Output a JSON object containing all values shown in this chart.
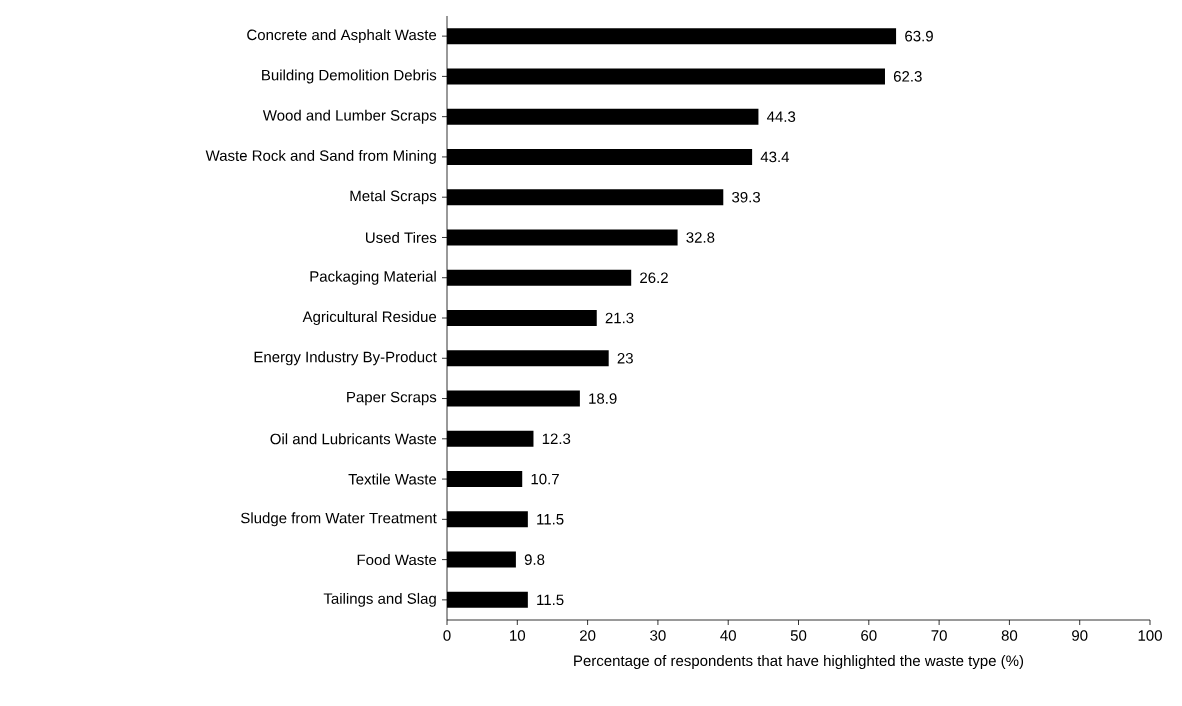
{
  "chart_data": {
    "type": "bar",
    "orientation": "horizontal",
    "xlabel": "Percentage of respondents that have highlighted the waste type (%)",
    "categories": [
      "Concrete and Asphalt Waste",
      "Building Demolition Debris",
      "Wood and Lumber Scraps",
      "Waste Rock and Sand from Mining",
      "Metal Scraps",
      "Used Tires",
      "Packaging Material",
      "Agricultural Residue",
      "Energy Industry By-Product",
      "Paper Scraps",
      "Oil and Lubricants Waste",
      "Textile Waste",
      "Sludge from Water Treatment",
      "Food Waste",
      "Tailings and Slag"
    ],
    "values": [
      63.9,
      62.3,
      44.3,
      43.4,
      39.3,
      32.8,
      26.2,
      21.3,
      23,
      18.9,
      12.3,
      10.7,
      11.5,
      9.8,
      11.5
    ],
    "color": "#000000",
    "xlim": [
      0,
      100
    ],
    "xticks": [
      0,
      10,
      20,
      30,
      40,
      50,
      60,
      70,
      80,
      90,
      100
    ],
    "data_labels": true
  }
}
